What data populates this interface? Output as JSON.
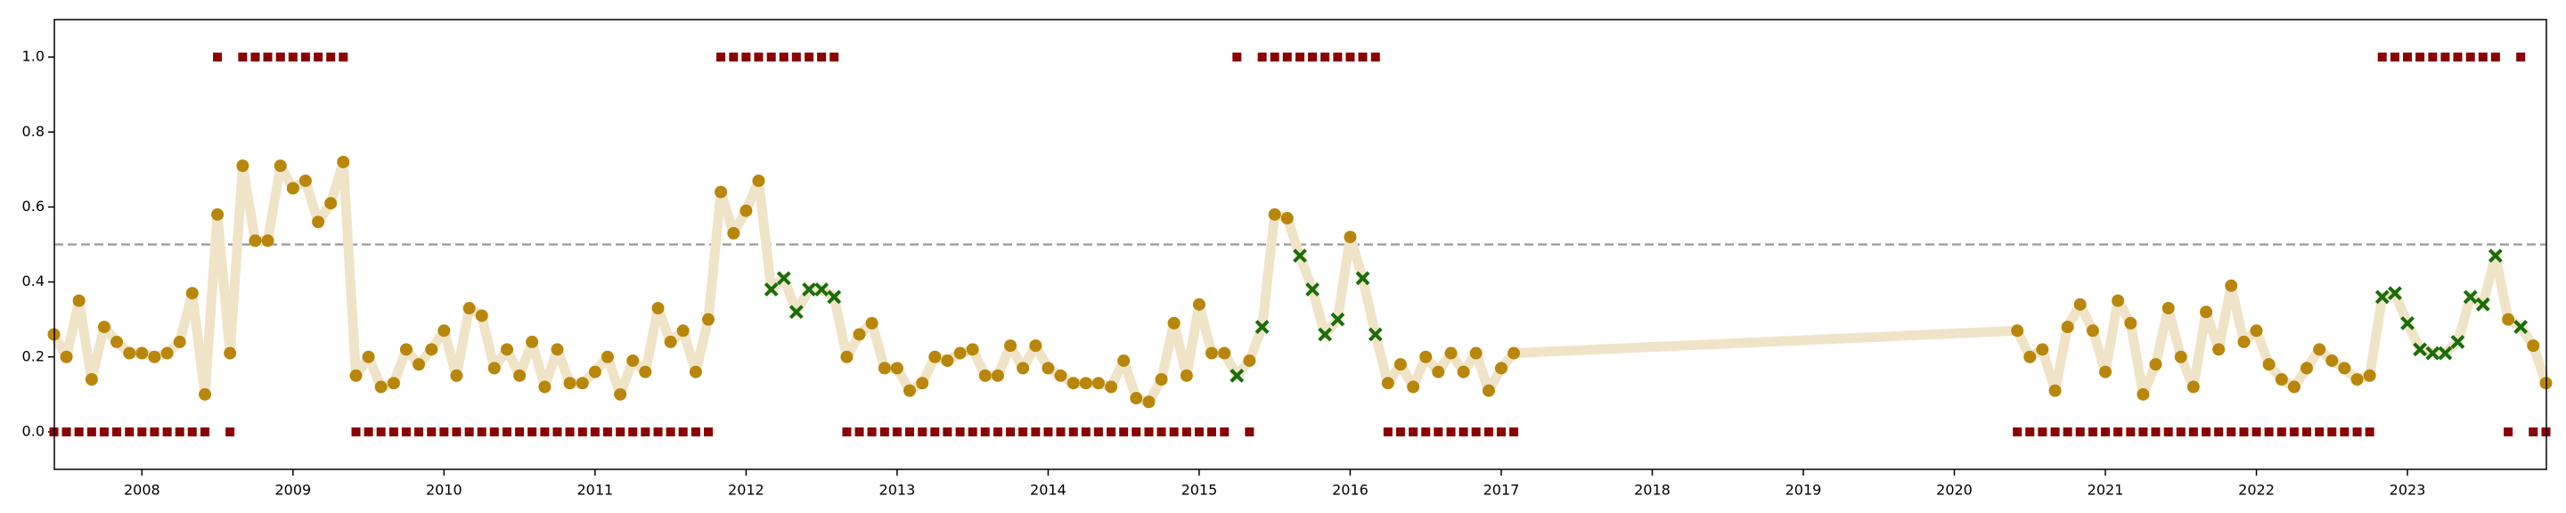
{
  "chart_data": {
    "type": "line",
    "x": [
      2007.417,
      2007.5,
      2007.583,
      2007.667,
      2007.75,
      2007.833,
      2007.917,
      2008,
      2008.083,
      2008.167,
      2008.25,
      2008.333,
      2008.417,
      2008.5,
      2008.583,
      2008.667,
      2008.75,
      2008.833,
      2008.917,
      2009,
      2009.083,
      2009.167,
      2009.25,
      2009.333,
      2009.417,
      2009.5,
      2009.583,
      2009.667,
      2009.75,
      2009.833,
      2009.917,
      2010,
      2010.083,
      2010.167,
      2010.25,
      2010.333,
      2010.417,
      2010.5,
      2010.583,
      2010.667,
      2010.75,
      2010.833,
      2010.917,
      2011,
      2011.083,
      2011.167,
      2011.25,
      2011.333,
      2011.417,
      2011.5,
      2011.583,
      2011.667,
      2011.75,
      2011.833,
      2011.917,
      2012,
      2012.083,
      2012.167,
      2012.25,
      2012.333,
      2012.417,
      2012.5,
      2012.583,
      2012.667,
      2012.75,
      2012.833,
      2012.917,
      2013,
      2013.083,
      2013.167,
      2013.25,
      2013.333,
      2013.417,
      2013.5,
      2013.583,
      2013.667,
      2013.75,
      2013.833,
      2013.917,
      2014,
      2014.083,
      2014.167,
      2014.25,
      2014.333,
      2014.417,
      2014.5,
      2014.583,
      2014.667,
      2014.75,
      2014.833,
      2014.917,
      2015,
      2015.083,
      2015.167,
      2015.25,
      2015.333,
      2015.417,
      2015.5,
      2015.583,
      2015.667,
      2015.75,
      2015.833,
      2015.917,
      2016,
      2016.083,
      2016.167,
      2016.25,
      2016.333,
      2016.417,
      2016.5,
      2016.583,
      2016.667,
      2016.75,
      2016.833,
      2016.917,
      2017,
      2017.083,
      2020.417,
      2020.5,
      2020.583,
      2020.667,
      2020.75,
      2020.833,
      2020.917,
      2021,
      2021.083,
      2021.167,
      2021.25,
      2021.333,
      2021.417,
      2021.5,
      2021.583,
      2021.667,
      2021.75,
      2021.833,
      2021.917,
      2022,
      2022.083,
      2022.167,
      2022.25,
      2022.333,
      2022.417,
      2022.5,
      2022.583,
      2022.667,
      2022.75,
      2022.833,
      2022.917,
      2023,
      2023.083,
      2023.167,
      2023.25,
      2023.333,
      2023.417,
      2023.5,
      2023.583,
      2023.667,
      2023.75,
      2023.833,
      2023.917
    ],
    "series": [
      {
        "line_color": "#f0e4c8",
        "circle_color": "#b8860b",
        "cross_color": "#1a6e0a",
        "values": [
          0.26,
          0.2,
          0.35,
          0.14,
          0.28,
          0.24,
          0.21,
          0.21,
          0.2,
          0.21,
          0.24,
          0.37,
          0.1,
          0.58,
          0.21,
          0.71,
          0.51,
          0.51,
          0.71,
          0.65,
          0.67,
          0.56,
          0.61,
          0.72,
          0.15,
          0.2,
          0.12,
          0.13,
          0.22,
          0.18,
          0.22,
          0.27,
          0.15,
          0.33,
          0.31,
          0.17,
          0.22,
          0.15,
          0.24,
          0.12,
          0.22,
          0.13,
          0.13,
          0.16,
          0.2,
          0.1,
          0.19,
          0.16,
          0.33,
          0.24,
          0.27,
          0.16,
          0.3,
          0.64,
          0.53,
          0.59,
          0.67,
          0.38,
          0.41,
          0.32,
          0.38,
          0.38,
          0.36,
          0.2,
          0.26,
          0.29,
          0.17,
          0.17,
          0.11,
          0.13,
          0.2,
          0.19,
          0.21,
          0.22,
          0.15,
          0.15,
          0.23,
          0.17,
          0.23,
          0.17,
          0.15,
          0.13,
          0.13,
          0.13,
          0.12,
          0.19,
          0.09,
          0.08,
          0.14,
          0.29,
          0.15,
          0.34,
          0.21,
          0.21,
          0.15,
          0.19,
          0.28,
          0.58,
          0.57,
          0.47,
          0.38,
          0.26,
          0.3,
          0.52,
          0.41,
          0.26,
          0.13,
          0.18,
          0.12,
          0.2,
          0.16,
          0.21,
          0.16,
          0.21,
          0.11,
          0.17,
          0.21,
          0.27,
          0.2,
          0.22,
          0.11,
          0.28,
          0.34,
          0.27,
          0.16,
          0.35,
          0.29,
          0.1,
          0.18,
          0.33,
          0.2,
          0.12,
          0.32,
          0.22,
          0.39,
          0.24,
          0.27,
          0.18,
          0.14,
          0.12,
          0.17,
          0.22,
          0.19,
          0.17,
          0.14,
          0.15,
          0.36,
          0.37,
          0.29,
          0.22,
          0.21,
          0.21,
          0.24,
          0.36,
          0.34,
          0.47,
          0.3,
          0.28,
          0.23,
          0.13
        ],
        "markers": [
          "o",
          "o",
          "o",
          "o",
          "o",
          "o",
          "o",
          "o",
          "o",
          "o",
          "o",
          "o",
          "o",
          "o",
          "o",
          "o",
          "o",
          "o",
          "o",
          "o",
          "o",
          "o",
          "o",
          "o",
          "o",
          "o",
          "o",
          "o",
          "o",
          "o",
          "o",
          "o",
          "o",
          "o",
          "o",
          "o",
          "o",
          "o",
          "o",
          "o",
          "o",
          "o",
          "o",
          "o",
          "o",
          "o",
          "o",
          "o",
          "o",
          "o",
          "o",
          "o",
          "o",
          "o",
          "o",
          "o",
          "o",
          "x",
          "x",
          "x",
          "x",
          "x",
          "x",
          "o",
          "o",
          "o",
          "o",
          "o",
          "o",
          "o",
          "o",
          "o",
          "o",
          "o",
          "o",
          "o",
          "o",
          "o",
          "o",
          "o",
          "o",
          "o",
          "o",
          "o",
          "o",
          "o",
          "o",
          "o",
          "o",
          "o",
          "o",
          "o",
          "o",
          "o",
          "x",
          "o",
          "x",
          "o",
          "o",
          "x",
          "x",
          "x",
          "x",
          "o",
          "x",
          "x",
          "o",
          "o",
          "o",
          "o",
          "o",
          "o",
          "o",
          "o",
          "o",
          "o",
          "o",
          "o",
          "o",
          "o",
          "o",
          "o",
          "o",
          "o",
          "o",
          "o",
          "o",
          "o",
          "o",
          "o",
          "o",
          "o",
          "o",
          "o",
          "o",
          "o",
          "o",
          "o",
          "o",
          "o",
          "o",
          "o",
          "o",
          "o",
          "o",
          "o",
          "x",
          "x",
          "x",
          "x",
          "x",
          "x",
          "x",
          "x",
          "x",
          "x",
          "o",
          "x",
          "o",
          "o"
        ]
      },
      {
        "color": "#8b0000",
        "values": [
          0,
          0,
          0,
          0,
          0,
          0,
          0,
          0,
          0,
          0,
          0,
          0,
          0,
          1,
          0,
          1,
          1,
          1,
          1,
          1,
          1,
          1,
          1,
          1,
          0,
          0,
          0,
          0,
          0,
          0,
          0,
          0,
          0,
          0,
          0,
          0,
          0,
          0,
          0,
          0,
          0,
          0,
          0,
          0,
          0,
          0,
          0,
          0,
          0,
          0,
          0,
          0,
          0,
          1,
          1,
          1,
          1,
          1,
          1,
          1,
          1,
          1,
          1,
          0,
          0,
          0,
          0,
          0,
          0,
          0,
          0,
          0,
          0,
          0,
          0,
          0,
          0,
          0,
          0,
          0,
          0,
          0,
          0,
          0,
          0,
          0,
          0,
          0,
          0,
          0,
          0,
          0,
          0,
          0,
          1,
          0,
          1,
          1,
          1,
          1,
          1,
          1,
          1,
          1,
          1,
          1,
          0,
          0,
          0,
          0,
          0,
          0,
          0,
          0,
          0,
          0,
          0,
          0,
          0,
          0,
          0,
          0,
          0,
          0,
          0,
          0,
          0,
          0,
          0,
          0,
          0,
          0,
          0,
          0,
          0,
          0,
          0,
          0,
          0,
          0,
          0,
          0,
          0,
          0,
          0,
          0,
          1,
          1,
          1,
          1,
          1,
          1,
          1,
          1,
          1,
          1,
          0,
          1,
          0,
          0
        ]
      }
    ],
    "threshold": 0.5,
    "threshold_color": "#999999",
    "xlim": [
      2007.42,
      2023.92
    ],
    "xticks": [
      2008,
      2009,
      2010,
      2011,
      2012,
      2013,
      2014,
      2015,
      2016,
      2017,
      2018,
      2019,
      2020,
      2021,
      2022,
      2023
    ],
    "ylim": [
      -0.1,
      1.1
    ],
    "yticks": [
      {
        "value": 0,
        "label": "0.0"
      },
      0.2,
      0.4,
      0.6,
      0.8,
      {
        "value": 1,
        "label": "1.0"
      }
    ]
  }
}
